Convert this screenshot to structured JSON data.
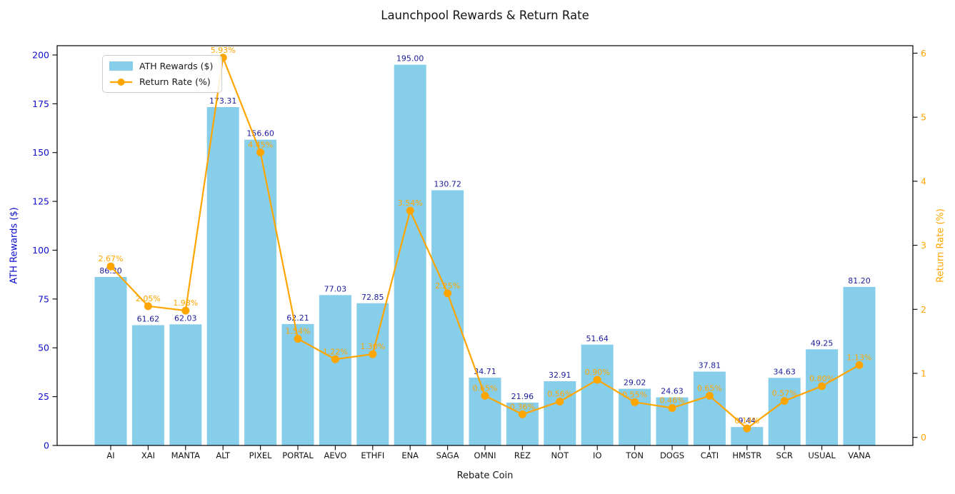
{
  "title": "Launchpool Rewards & Return Rate",
  "chart_data": {
    "type": "bar",
    "title": "Launchpool Rewards & Return Rate",
    "xlabel": "Rebate Coin",
    "ylabel_left": "ATH Rewards ($)",
    "ylabel_right": "Return Rate (%)",
    "categories": [
      "AI",
      "XAI",
      "MANTA",
      "ALT",
      "PIXEL",
      "PORTAL",
      "AEVO",
      "ETHFI",
      "ENA",
      "SAGA",
      "OMNI",
      "REZ",
      "NOT",
      "IO",
      "TON",
      "DOGS",
      "CATI",
      "HMSTR",
      "SCR",
      "USUAL",
      "VANA"
    ],
    "series": [
      {
        "name": "ATH Rewards ($)",
        "type": "bar",
        "axis": "left",
        "color": "#87CEEB",
        "values": [
          86.3,
          61.62,
          62.03,
          173.31,
          156.6,
          62.21,
          77.03,
          72.85,
          195.0,
          130.72,
          34.71,
          21.96,
          32.91,
          51.64,
          29.02,
          24.63,
          37.81,
          9.44,
          34.63,
          49.25,
          81.2
        ],
        "value_labels": [
          "86.30",
          "61.62",
          "62.03",
          "173.31",
          "156.60",
          "62.21",
          "77.03",
          "72.85",
          "195.00",
          "130.72",
          "34.71",
          "21.96",
          "32.91",
          "51.64",
          "29.02",
          "24.63",
          "37.81",
          "9.44",
          "34.63",
          "49.25",
          "81.20"
        ]
      },
      {
        "name": "Return Rate (%)",
        "type": "line",
        "axis": "right",
        "color": "#FFA500",
        "values": [
          2.67,
          2.05,
          1.98,
          5.93,
          4.45,
          1.54,
          1.22,
          1.3,
          3.54,
          2.25,
          0.65,
          0.36,
          0.56,
          0.9,
          0.55,
          0.46,
          0.65,
          0.14,
          0.57,
          0.8,
          1.13
        ],
        "value_labels": [
          "2.67%",
          "2.05%",
          "1.98%",
          "5.93%",
          "4.45%",
          "1.54%",
          "1.22%",
          "1.30%",
          "3.54%",
          "2.25%",
          "0.65%",
          "0.36%",
          "0.56%",
          "0.90%",
          "0.55%",
          "0.46%",
          "0.65%",
          "0.14%",
          "0.57%",
          "0.80%",
          "1.13%"
        ]
      }
    ],
    "axes": {
      "left": {
        "ticks": [
          0,
          25,
          50,
          75,
          100,
          125,
          150,
          175,
          200
        ],
        "lim": [
          0,
          204.75
        ]
      },
      "right": {
        "ticks": [
          0,
          1,
          2,
          3,
          4,
          5,
          6
        ],
        "lim": [
          -0.13,
          6.12
        ]
      }
    },
    "grid": false,
    "legend_position": "upper left"
  },
  "legend": {
    "items": [
      {
        "label": "ATH Rewards ($)",
        "marker": "patch"
      },
      {
        "label": "Return Rate (%)",
        "marker": "line-circle"
      }
    ]
  },
  "colors": {
    "bar": "#87CEEB",
    "line": "#FFA500",
    "bar_value_label": "#1c1c9c",
    "left_axis_text": "#0d0dcf",
    "right_axis_text": "#FFA500",
    "x_axis_text": "#151515",
    "spine": "#000000",
    "background": "#FFFFFF",
    "legend_border": "#cccccc"
  }
}
